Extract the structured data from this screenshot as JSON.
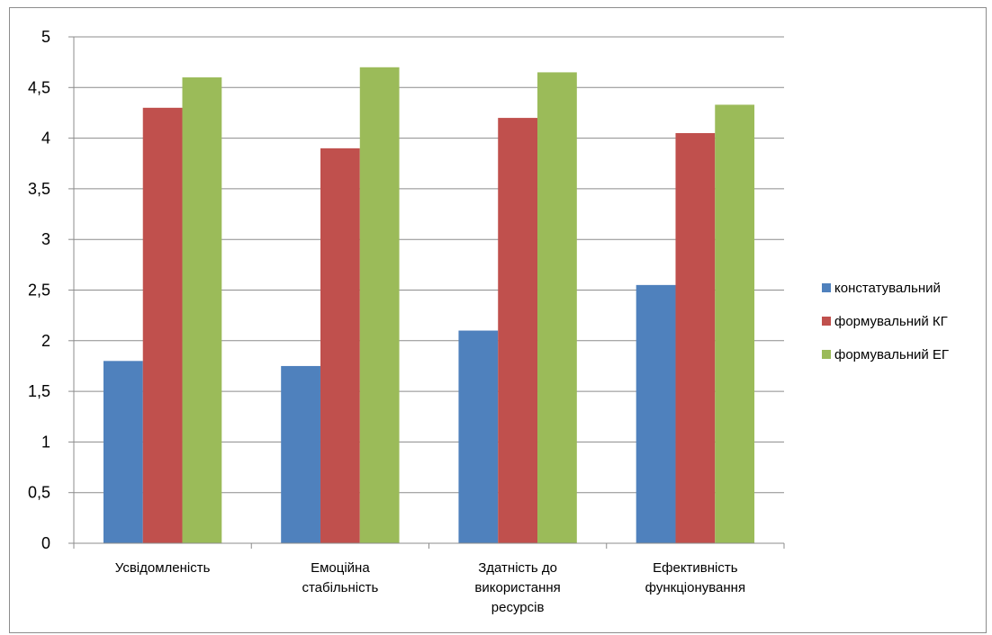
{
  "chart_data": {
    "type": "bar",
    "title": "",
    "xlabel": "",
    "ylabel": "",
    "ylim": [
      0,
      5
    ],
    "yticks": [
      "0",
      "0,5",
      "1",
      "1,5",
      "2",
      "2,5",
      "3",
      "3,5",
      "4",
      "4,5",
      "5"
    ],
    "yticks_values": [
      0,
      0.5,
      1,
      1.5,
      2,
      2.5,
      3,
      3.5,
      4,
      4.5,
      5
    ],
    "grid": "horizontal",
    "legend_position": "right",
    "categories": [
      [
        "Усвідомленість"
      ],
      [
        "Емоційна",
        "стабільність"
      ],
      [
        "Здатність до",
        "використання",
        "ресурсів"
      ],
      [
        "Ефективність",
        "функціонування"
      ]
    ],
    "series": [
      {
        "name": "констатувальний",
        "color": "#4f81bd",
        "values": [
          1.8,
          1.75,
          2.1,
          2.55
        ]
      },
      {
        "name": "формувальний КГ",
        "color": "#c0504d",
        "values": [
          4.3,
          3.9,
          4.2,
          4.05
        ]
      },
      {
        "name": "формувальний ЕГ",
        "color": "#9bbb59",
        "values": [
          4.6,
          4.7,
          4.65,
          4.33
        ]
      }
    ]
  }
}
